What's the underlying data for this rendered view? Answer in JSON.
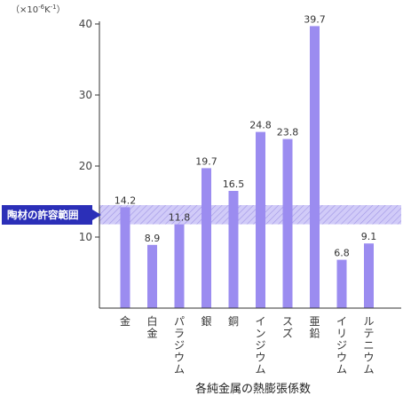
{
  "chart_data": {
    "type": "bar",
    "title": "各純金属の熱膨張係数",
    "unit_label": "（×10-6K-1）",
    "ylim": [
      0,
      40
    ],
    "yticks": [
      10,
      20,
      30,
      40
    ],
    "grid": false,
    "categories": [
      "金",
      "白金",
      "パラジウム",
      "銀",
      "銅",
      "インジウム",
      "スズ",
      "亜鉛",
      "イリジウム",
      "ルテニウム"
    ],
    "values": [
      14.2,
      8.9,
      11.8,
      19.7,
      16.5,
      24.8,
      23.8,
      39.7,
      6.8,
      9.1
    ],
    "value_labels": [
      "14.2",
      "8.9",
      "11.8",
      "19.7",
      "16.5",
      "24.8",
      "23.8",
      "39.7",
      "6.8",
      "9.1"
    ],
    "band": {
      "label": "陶材の許容範囲",
      "range": [
        11.8,
        14.5
      ]
    },
    "colors": {
      "bar": "#9b8cf0",
      "band_fill": "#c9c2f7",
      "band_hatch": "#8f83e0",
      "band_label_bg": "#2b2fb8",
      "axis": "#333333"
    }
  }
}
